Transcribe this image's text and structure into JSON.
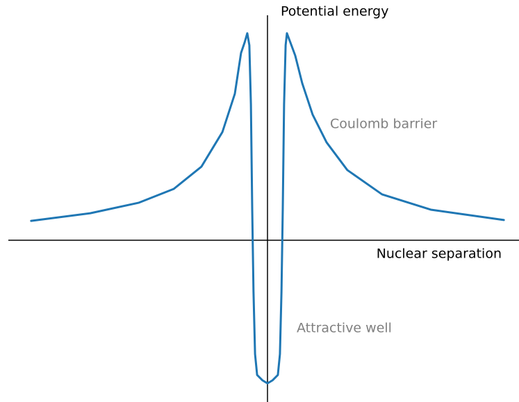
{
  "chart_data": {
    "type": "line",
    "x_label": "Nuclear separation",
    "y_label": "Potential energy",
    "annotations": [
      "Coulomb barrier",
      "Attractive well"
    ],
    "x": [
      -9.12,
      -6.84,
      -4.96,
      -3.62,
      -2.55,
      -1.74,
      -1.26,
      -1.02,
      -0.88,
      -0.78,
      -0.7,
      -0.64,
      -0.59,
      -0.54,
      -0.48,
      -0.4,
      -0.19,
      0,
      0.19,
      0.4,
      0.48,
      0.54,
      0.59,
      0.64,
      0.7,
      0.75,
      0.88,
      1.07,
      1.34,
      1.74,
      2.28,
      3.08,
      4.42,
      6.3,
      9.12
    ],
    "values": [
      0.86,
      1.2,
      1.67,
      2.28,
      3.27,
      4.81,
      6.51,
      8.33,
      8.8,
      9.2,
      8.67,
      6.05,
      1.42,
      -2.28,
      -5.06,
      -5.99,
      -6.23,
      -6.36,
      -6.23,
      -5.99,
      -5.06,
      -2.28,
      1.42,
      6.05,
      8.67,
      9.2,
      8.8,
      8.21,
      6.98,
      5.59,
      4.35,
      3.12,
      2.04,
      1.36,
      0.9
    ],
    "color": "#1f77b4",
    "xlim": [
      -10,
      9.705
    ],
    "ylim": [
      -7.19,
      10
    ]
  }
}
